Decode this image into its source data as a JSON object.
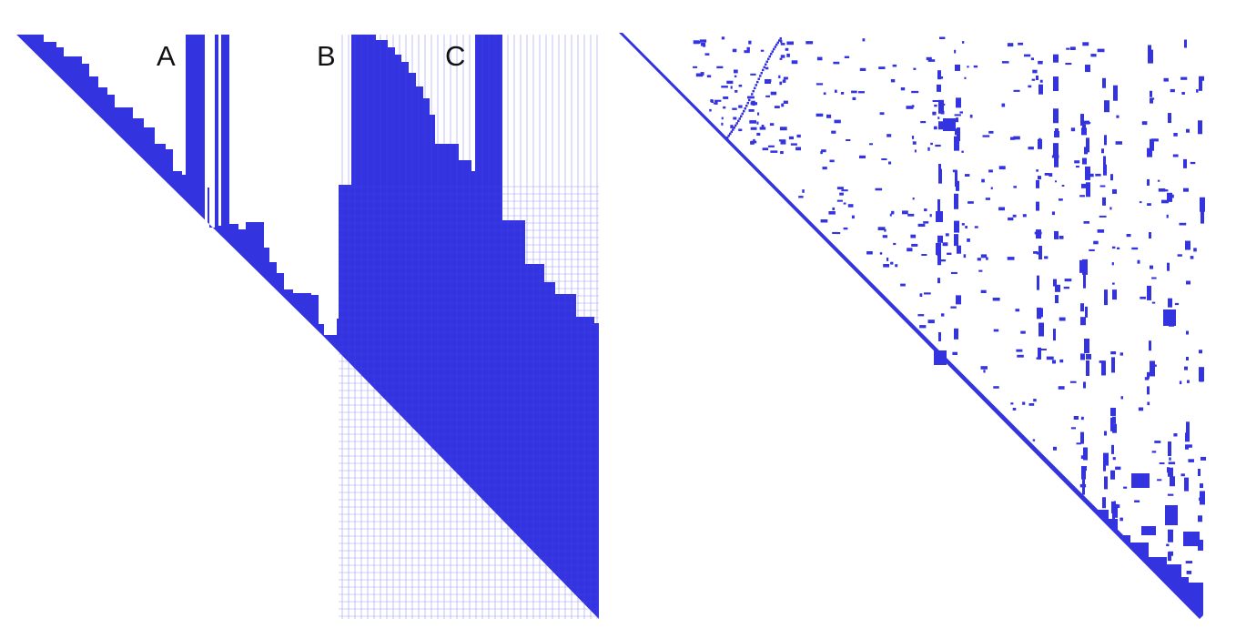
{
  "figure": {
    "fill_color": "#3333e0",
    "background": "#ffffff",
    "panels": [
      {
        "id": "left",
        "description_labels": [
          "A",
          "B",
          "C"
        ]
      },
      {
        "id": "right"
      }
    ],
    "labels": {
      "a": "A",
      "b": "B",
      "c": "C"
    }
  }
}
